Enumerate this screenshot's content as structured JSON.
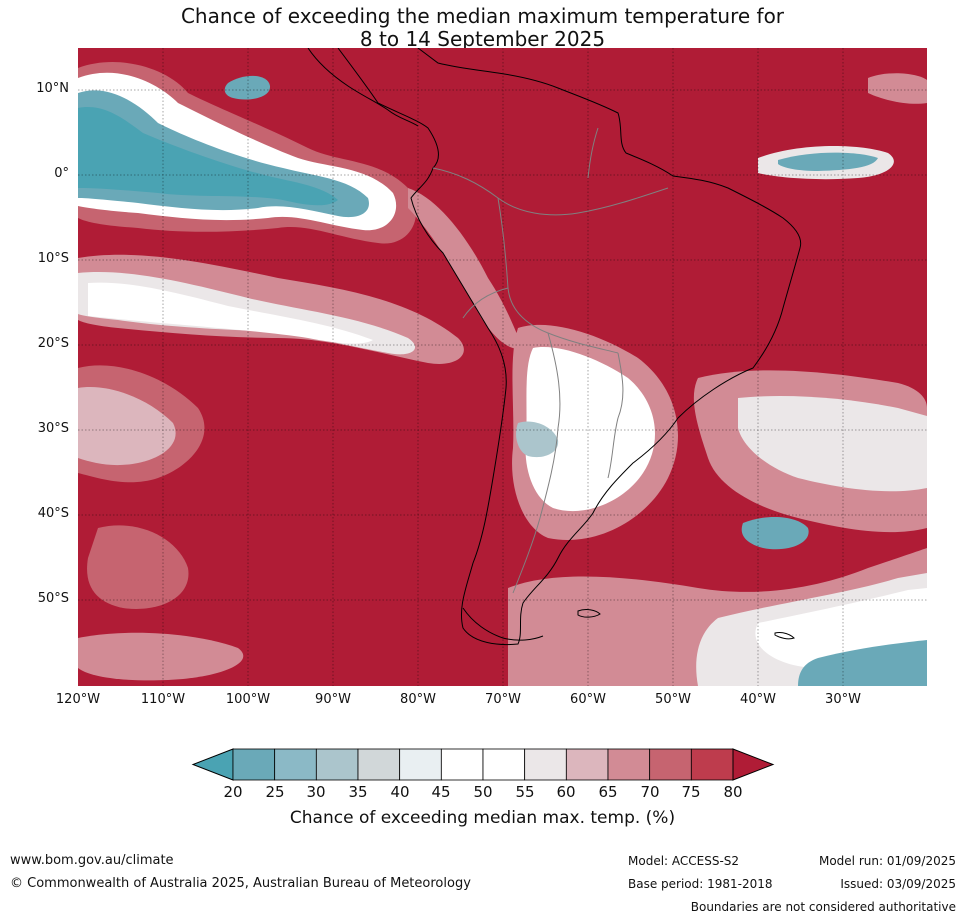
{
  "title_line1": "Chance of exceeding the median maximum temperature for",
  "title_line2": "8 to 14 September 2025",
  "map": {
    "projection": "plate-carree",
    "lon_range": [
      -120,
      -20
    ],
    "lat_range": [
      -60,
      15
    ],
    "lat_ticks": [
      {
        "value": 10,
        "label": "10°N"
      },
      {
        "value": 0,
        "label": "0°"
      },
      {
        "value": -10,
        "label": "10°S"
      },
      {
        "value": -20,
        "label": "20°S"
      },
      {
        "value": -30,
        "label": "30°S"
      },
      {
        "value": -40,
        "label": "40°S"
      },
      {
        "value": -50,
        "label": "50°S"
      }
    ],
    "lon_ticks": [
      {
        "value": -120,
        "label": "120°W"
      },
      {
        "value": -110,
        "label": "110°W"
      },
      {
        "value": -100,
        "label": "100°W"
      },
      {
        "value": -90,
        "label": "90°W"
      },
      {
        "value": -80,
        "label": "80°W"
      },
      {
        "value": -70,
        "label": "70°W"
      },
      {
        "value": -60,
        "label": "60°W"
      },
      {
        "value": -50,
        "label": "50°W"
      },
      {
        "value": -40,
        "label": "40°W"
      },
      {
        "value": -30,
        "label": "30°W"
      }
    ],
    "base_color": "#b01c36",
    "coast_color": "#000000",
    "border_color": "#808080"
  },
  "colorbar": {
    "label": "Chance of exceeding median max. temp. (%)",
    "ticks": [
      "20",
      "25",
      "30",
      "35",
      "40",
      "45",
      "50",
      "55",
      "60",
      "65",
      "70",
      "75",
      "80"
    ],
    "low_extend_color": "#4aa3b3",
    "high_extend_color": "#b01c36",
    "bins": [
      {
        "from": 20,
        "to": 25,
        "color": "#6aa9b8"
      },
      {
        "from": 25,
        "to": 30,
        "color": "#8bb9c6"
      },
      {
        "from": 30,
        "to": 35,
        "color": "#abc5cc"
      },
      {
        "from": 35,
        "to": 40,
        "color": "#d1d7d9"
      },
      {
        "from": 40,
        "to": 45,
        "color": "#e9eff2"
      },
      {
        "from": 45,
        "to": 50,
        "color": "#ffffff"
      },
      {
        "from": 50,
        "to": 55,
        "color": "#ffffff"
      },
      {
        "from": 55,
        "to": 60,
        "color": "#ebe7e8"
      },
      {
        "from": 60,
        "to": 65,
        "color": "#dcb6bd"
      },
      {
        "from": 65,
        "to": 70,
        "color": "#d28b95"
      },
      {
        "from": 70,
        "to": 75,
        "color": "#c66470"
      },
      {
        "from": 75,
        "to": 80,
        "color": "#be3c4d"
      }
    ]
  },
  "footer": {
    "url": "www.bom.gov.au/climate",
    "copyright": "© Commonwealth of Australia 2025, Australian Bureau of Meteorology",
    "model": "Model: ACCESS-S2",
    "base_period": "Base period: 1981-2018",
    "model_run": "Model run: 01/09/2025",
    "issued": "Issued: 03/09/2025",
    "disclaimer": "Boundaries are not considered authoritative"
  }
}
